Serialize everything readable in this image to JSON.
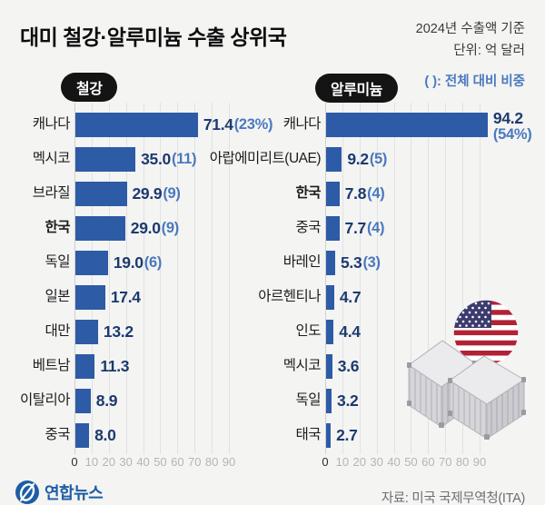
{
  "header": {
    "title": "대미 철강·알루미늄 수출 상위국",
    "note_line1": "2024년 수출액 기준",
    "note_line2": "단위: 억 달러",
    "legend_note": "( ): 전체 대비 비중"
  },
  "charts": [
    {
      "badge": "철강",
      "rows": [
        {
          "label": "캐나다",
          "value": 71.4,
          "value_label": "71.4",
          "share": "(23%)"
        },
        {
          "label": "멕시코",
          "value": 35.0,
          "value_label": "35.0",
          "share": "(11)"
        },
        {
          "label": "브라질",
          "value": 29.9,
          "value_label": "29.9",
          "share": "(9)"
        },
        {
          "label": "한국",
          "value": 29.0,
          "value_label": "29.0",
          "share": "(9)",
          "bold": true
        },
        {
          "label": "독일",
          "value": 19.0,
          "value_label": "19.0",
          "share": "(6)"
        },
        {
          "label": "일본",
          "value": 17.4,
          "value_label": "17.4"
        },
        {
          "label": "대만",
          "value": 13.2,
          "value_label": "13.2"
        },
        {
          "label": "베트남",
          "value": 11.3,
          "value_label": "11.3"
        },
        {
          "label": "이탈리아",
          "value": 8.9,
          "value_label": "8.9"
        },
        {
          "label": "중국",
          "value": 8.0,
          "value_label": "8.0"
        }
      ],
      "axis_ticks": [
        "0",
        "10",
        "20",
        "30",
        "40",
        "50",
        "60",
        "70",
        "80",
        "90"
      ]
    },
    {
      "badge": "알루미늄",
      "rows": [
        {
          "label": "캐나다",
          "value": 94.2,
          "value_label": "94.2",
          "share": "(54%)",
          "share_below": true
        },
        {
          "label": "아랍에미리트(UAE)",
          "value": 9.2,
          "value_label": "9.2",
          "share": "(5)"
        },
        {
          "label": "한국",
          "value": 7.8,
          "value_label": "7.8",
          "share": "(4)",
          "bold": true
        },
        {
          "label": "중국",
          "value": 7.7,
          "value_label": "7.7",
          "share": "(4)"
        },
        {
          "label": "바레인",
          "value": 5.3,
          "value_label": "5.3",
          "share": "(3)"
        },
        {
          "label": "아르헨티나",
          "value": 4.7,
          "value_label": "4.7"
        },
        {
          "label": "인도",
          "value": 4.4,
          "value_label": "4.4"
        },
        {
          "label": "멕시코",
          "value": 3.6,
          "value_label": "3.6"
        },
        {
          "label": "독일",
          "value": 3.2,
          "value_label": "3.2"
        },
        {
          "label": "태국",
          "value": 2.7,
          "value_label": "2.7"
        }
      ],
      "axis_ticks": [
        "0",
        "10",
        "20",
        "30",
        "40",
        "50",
        "60",
        "70",
        "80",
        "90"
      ]
    }
  ],
  "footer": {
    "logo_text": "연합뉴스",
    "source": "자료: 미국 국제무역청(ITA)"
  },
  "colors": {
    "bar": "#2d5ba6",
    "value_number": "#1c3a6e",
    "value_share": "#4a79bd",
    "background": "#f4f4f3",
    "badge_bg": "#141414",
    "logo_blue": "#1d5da5"
  },
  "chart_data": [
    {
      "type": "bar",
      "orientation": "horizontal",
      "title": "철강",
      "categories": [
        "캐나다",
        "멕시코",
        "브라질",
        "한국",
        "독일",
        "일본",
        "대만",
        "베트남",
        "이탈리아",
        "중국"
      ],
      "values": [
        71.4,
        35.0,
        29.9,
        29.0,
        19.0,
        17.4,
        13.2,
        11.3,
        8.9,
        8.0
      ],
      "share_of_total_pct": [
        23,
        11,
        9,
        9,
        6,
        null,
        null,
        null,
        null,
        null
      ],
      "unit": "억 달러",
      "xlim": [
        0,
        90
      ],
      "x_ticks": [
        0,
        10,
        20,
        30,
        40,
        50,
        60,
        70,
        80,
        90
      ],
      "grid": true,
      "legend_position": "none"
    },
    {
      "type": "bar",
      "orientation": "horizontal",
      "title": "알루미늄",
      "categories": [
        "캐나다",
        "아랍에미리트(UAE)",
        "한국",
        "중국",
        "바레인",
        "아르헨티나",
        "인도",
        "멕시코",
        "독일",
        "태국"
      ],
      "values": [
        94.2,
        9.2,
        7.8,
        7.7,
        5.3,
        4.7,
        4.4,
        3.6,
        3.2,
        2.7
      ],
      "share_of_total_pct": [
        54,
        5,
        4,
        4,
        3,
        null,
        null,
        null,
        null,
        null
      ],
      "unit": "억 달러",
      "xlim": [
        0,
        90
      ],
      "x_ticks": [
        0,
        10,
        20,
        30,
        40,
        50,
        60,
        70,
        80,
        90
      ],
      "grid": true,
      "legend_position": "none"
    }
  ]
}
